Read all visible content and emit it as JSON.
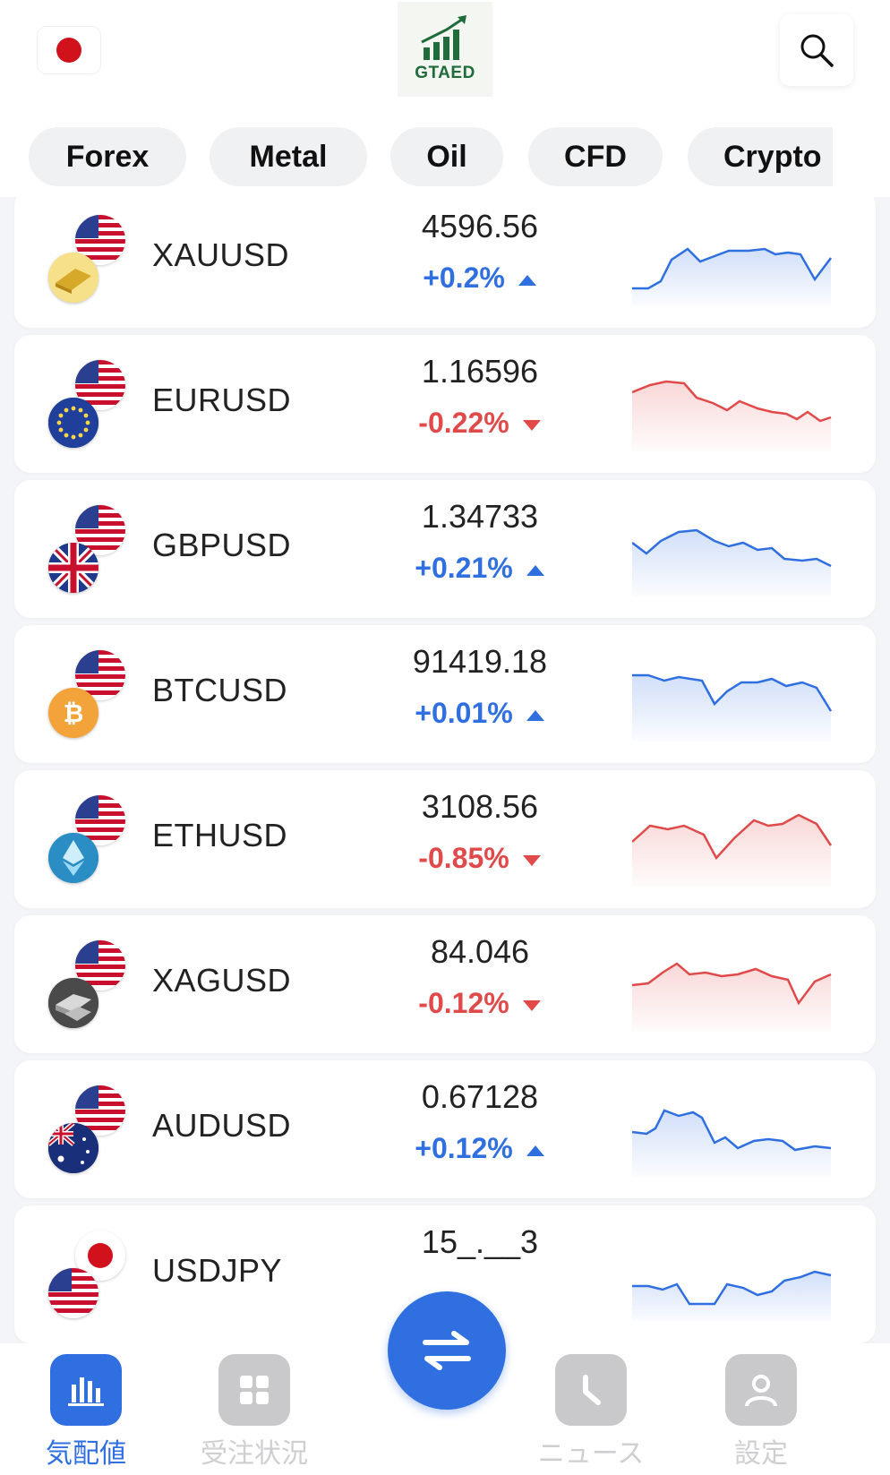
{
  "header": {
    "logo_text": "GTAED"
  },
  "tabs": [
    "Forex",
    "Metal",
    "Oil",
    "CFD",
    "Crypto"
  ],
  "quotes": [
    {
      "symbol": "XAUUSD",
      "price": "4596.56",
      "change": "+0.2%",
      "direction": "up",
      "icon": "gold-bar-icon"
    },
    {
      "symbol": "EURUSD",
      "price": "1.16596",
      "change": "-0.22%",
      "direction": "down",
      "icon": "eu-flag-icon"
    },
    {
      "symbol": "GBPUSD",
      "price": "1.34733",
      "change": "+0.21%",
      "direction": "up",
      "icon": "uk-flag-icon"
    },
    {
      "symbol": "BTCUSD",
      "price": "91419.18",
      "change": "+0.01%",
      "direction": "up",
      "icon": "bitcoin-icon"
    },
    {
      "symbol": "ETHUSD",
      "price": "3108.56",
      "change": "-0.85%",
      "direction": "down",
      "icon": "ethereum-icon"
    },
    {
      "symbol": "XAGUSD",
      "price": "84.046",
      "change": "-0.12%",
      "direction": "down",
      "icon": "silver-bar-icon"
    },
    {
      "symbol": "AUDUSD",
      "price": "0.67128",
      "change": "+0.12%",
      "direction": "up",
      "icon": "au-flag-icon"
    },
    {
      "symbol": "USDJPY",
      "price": "15_.__3",
      "change": "",
      "direction": "up",
      "icon": "jp-flag-icon"
    }
  ],
  "nav": [
    {
      "label": "気配値",
      "active": true
    },
    {
      "label": "受注状況",
      "active": false
    },
    {
      "label": "ニュース",
      "active": false
    },
    {
      "label": "設定",
      "active": false
    }
  ],
  "colors": {
    "up": "#2f6fe0",
    "down": "#e04a4a",
    "accent": "#2f6fe0"
  }
}
